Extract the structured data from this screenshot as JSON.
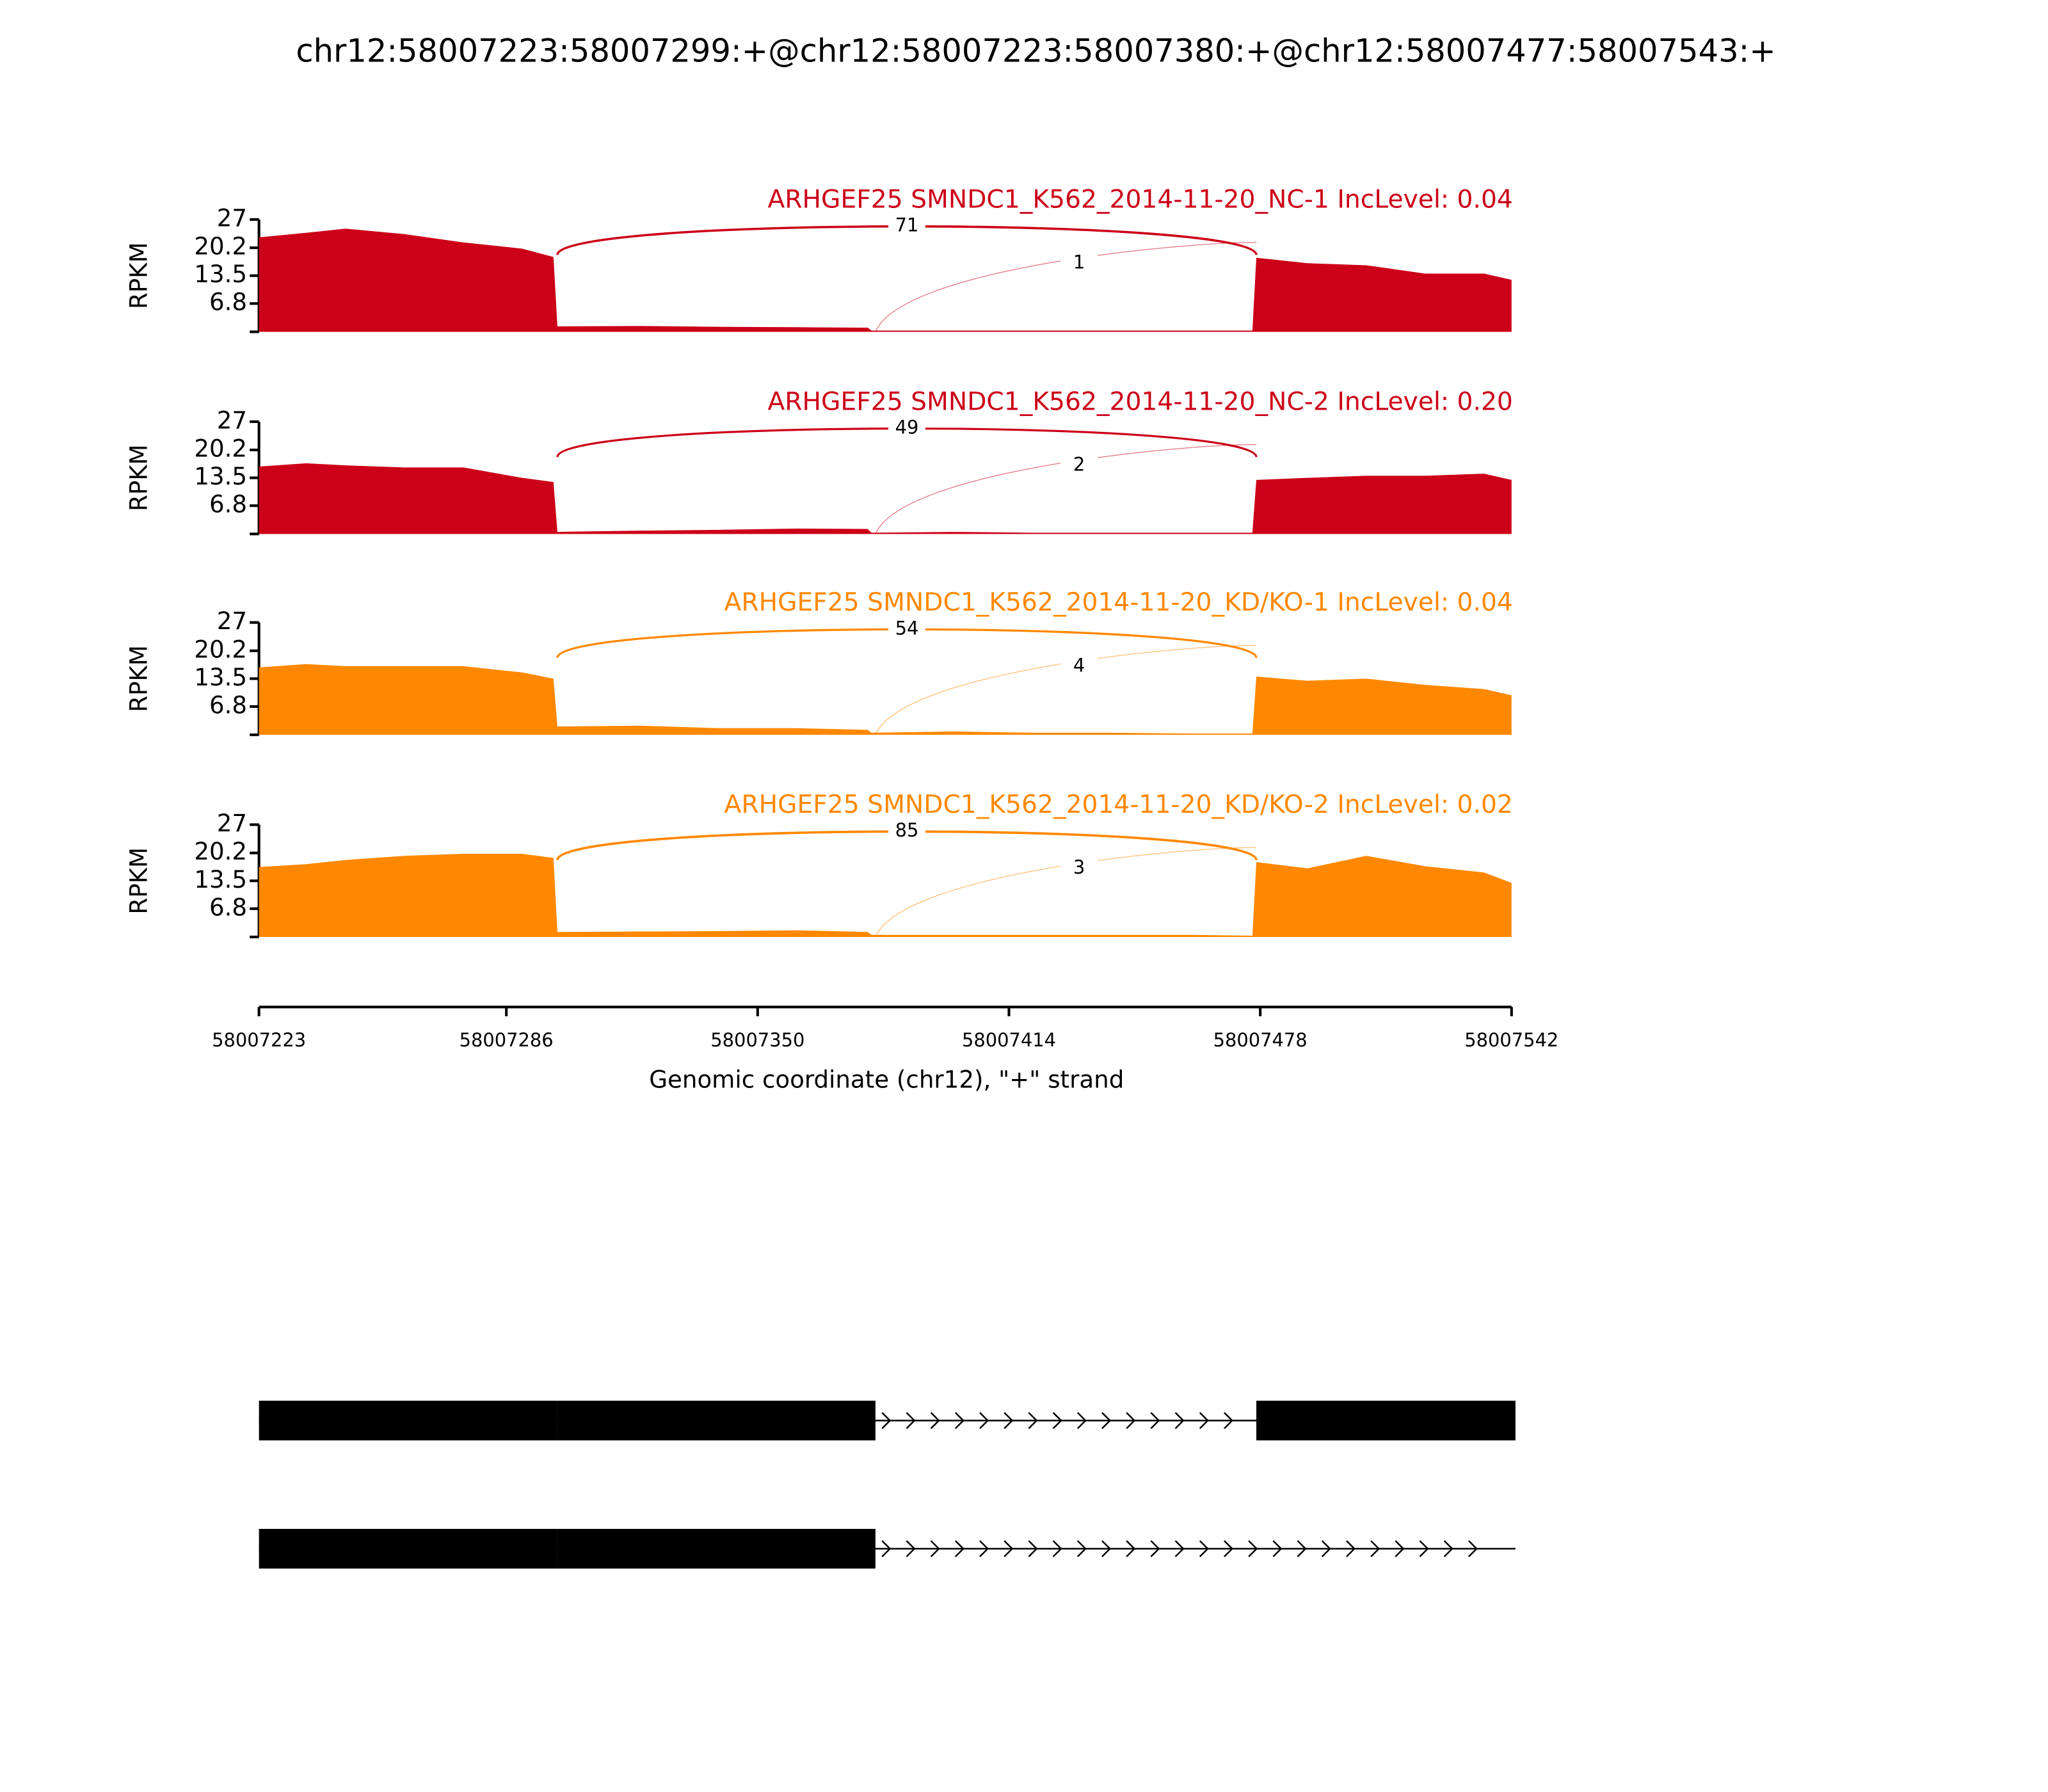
{
  "chart_data": {
    "type": "sashimi",
    "title": "chr12:58007223:58007299:+@chr12:58007223:58007380:+@chr12:58007477:58007543:+",
    "xlabel": "Genomic coordinate (chr12), \"+\" strand",
    "ylabel": "RPKM",
    "xlim": [
      58007223,
      58007542
    ],
    "xticks": [
      58007223,
      58007286,
      58007350,
      58007414,
      58007478,
      58007542
    ],
    "ylim": [
      0,
      27
    ],
    "yticks": [
      6.8,
      13.5,
      20.2,
      27
    ],
    "x": [
      58007223,
      58007235,
      58007245,
      58007260,
      58007275,
      58007290,
      58007298,
      58007299,
      58007320,
      58007340,
      58007360,
      58007378,
      58007379,
      58007400,
      58007420,
      58007440,
      58007460,
      58007476,
      58007477,
      58007490,
      58007505,
      58007520,
      58007535,
      58007542
    ],
    "series": [
      {
        "name": "ARHGEF25 SMNDC1_K562_2014-11-20_NC-1 IncLevel: 0.04",
        "color": "#cc0018",
        "values": [
          22.7,
          23.8,
          24.8,
          23.5,
          21.5,
          20,
          18,
          1.3,
          1.4,
          1.2,
          1.1,
          1,
          0.3,
          0.3,
          0.3,
          0.3,
          0.3,
          0.3,
          17.8,
          16.5,
          16,
          14,
          14,
          12.5
        ],
        "junctions": [
          {
            "start": 58007299,
            "end": 58007477,
            "count": 71
          },
          {
            "start": 58007380,
            "end": 58007477,
            "count": 1
          }
        ]
      },
      {
        "name": "ARHGEF25 SMNDC1_K562_2014-11-20_NC-2 IncLevel: 0.20",
        "color": "#cc0018",
        "values": [
          16.2,
          17,
          16.5,
          16,
          16,
          13.5,
          12.5,
          0.5,
          0.8,
          1,
          1.3,
          1.2,
          0.3,
          0.5,
          0.3,
          0.3,
          0.3,
          0.3,
          13,
          13.5,
          14,
          14,
          14.5,
          13
        ],
        "junctions": [
          {
            "start": 58007299,
            "end": 58007477,
            "count": 49
          },
          {
            "start": 58007380,
            "end": 58007477,
            "count": 2
          }
        ]
      },
      {
        "name": "ARHGEF25 SMNDC1_K562_2014-11-20_KD/KO-1 IncLevel: 0.04",
        "color": "#ff8800",
        "values": [
          16.2,
          17,
          16.5,
          16.5,
          16.5,
          15,
          13.5,
          2,
          2.2,
          1.6,
          1.6,
          1.2,
          0.5,
          0.8,
          0.5,
          0.5,
          0.3,
          0.3,
          14,
          13,
          13.5,
          12,
          11,
          9.5
        ],
        "junctions": [
          {
            "start": 58007299,
            "end": 58007477,
            "count": 54
          },
          {
            "start": 58007380,
            "end": 58007477,
            "count": 4
          }
        ]
      },
      {
        "name": "ARHGEF25 SMNDC1_K562_2014-11-20_KD/KO-2 IncLevel: 0.02",
        "color": "#ff8800",
        "values": [
          16.8,
          17.5,
          18.5,
          19.5,
          20,
          20,
          19,
          1.2,
          1.3,
          1.4,
          1.6,
          1.2,
          0.5,
          0.5,
          0.5,
          0.5,
          0.5,
          0.3,
          18,
          16.5,
          19.5,
          17,
          15.5,
          13
        ],
        "junctions": [
          {
            "start": 58007299,
            "end": 58007477,
            "count": 85
          },
          {
            "start": 58007380,
            "end": 58007477,
            "count": 3
          }
        ]
      }
    ],
    "transcripts": [
      {
        "exons": [
          [
            58007223,
            58007299
          ],
          [
            58007299,
            58007380
          ],
          [
            58007477,
            58007543
          ]
        ],
        "span": [
          58007223,
          58007543
        ]
      },
      {
        "exons": [
          [
            58007223,
            58007299
          ],
          [
            58007299,
            58007380
          ]
        ],
        "span": [
          58007223,
          58007543
        ]
      }
    ]
  }
}
